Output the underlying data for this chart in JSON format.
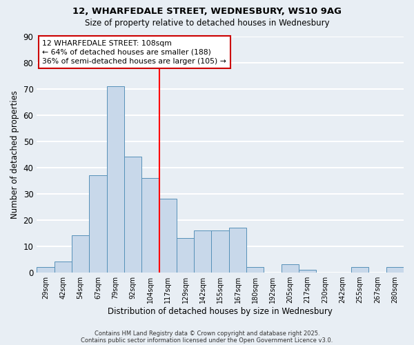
{
  "title1": "12, WHARFEDALE STREET, WEDNESBURY, WS10 9AG",
  "title2": "Size of property relative to detached houses in Wednesbury",
  "xlabel": "Distribution of detached houses by size in Wednesbury",
  "ylabel": "Number of detached properties",
  "bin_labels": [
    "29sqm",
    "42sqm",
    "54sqm",
    "67sqm",
    "79sqm",
    "92sqm",
    "104sqm",
    "117sqm",
    "129sqm",
    "142sqm",
    "155sqm",
    "167sqm",
    "180sqm",
    "192sqm",
    "205sqm",
    "217sqm",
    "230sqm",
    "242sqm",
    "255sqm",
    "267sqm",
    "280sqm"
  ],
  "bar_values": [
    2,
    4,
    14,
    37,
    71,
    44,
    36,
    28,
    13,
    16,
    16,
    17,
    2,
    0,
    3,
    1,
    0,
    0,
    2,
    0,
    2
  ],
  "bar_color": "#c8d8ea",
  "bar_edge_color": "#5590b8",
  "vline_color": "red",
  "vline_pos": 6.5,
  "ylim": [
    0,
    90
  ],
  "yticks": [
    0,
    10,
    20,
    30,
    40,
    50,
    60,
    70,
    80,
    90
  ],
  "annotation_title": "12 WHARFEDALE STREET: 108sqm",
  "annotation_line1": "← 64% of detached houses are smaller (188)",
  "annotation_line2": "36% of semi-detached houses are larger (105) →",
  "annotation_box_color": "white",
  "annotation_box_edge": "#cc0000",
  "footnote1": "Contains HM Land Registry data © Crown copyright and database right 2025.",
  "footnote2": "Contains public sector information licensed under the Open Government Licence v3.0.",
  "background_color": "#e8eef4",
  "grid_color": "white"
}
